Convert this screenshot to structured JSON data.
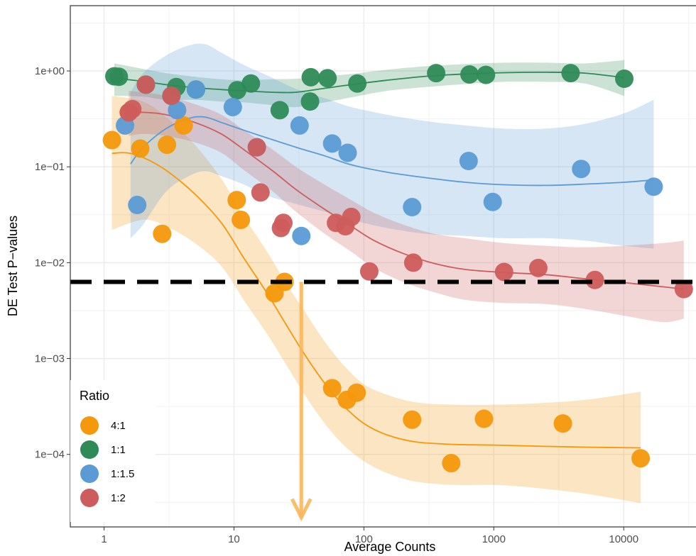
{
  "chart_data": {
    "type": "scatter",
    "xlabel": "Average Counts",
    "ylabel": "DE Test P−values",
    "x_scale": "log",
    "y_scale": "log",
    "xlim": [
      0.55,
      36000
    ],
    "ylim": [
      1.75e-05,
      4.8
    ],
    "x_ticks": [
      {
        "value": 1,
        "label": "1"
      },
      {
        "value": 10,
        "label": "10"
      },
      {
        "value": 100,
        "label": "100"
      },
      {
        "value": 1000,
        "label": "1000"
      },
      {
        "value": 10000,
        "label": "10000"
      }
    ],
    "y_ticks": [
      {
        "value": 1,
        "label": "1e+00"
      },
      {
        "value": 0.1,
        "label": "1e−01"
      },
      {
        "value": 0.01,
        "label": "1e−02"
      },
      {
        "value": 0.001,
        "label": "1e−03"
      },
      {
        "value": 0.0001,
        "label": "1e−04"
      }
    ],
    "grid": true,
    "threshold_line": {
      "y": 0.0063,
      "style": "dashed",
      "color": "#000000"
    },
    "annotation_arrow": {
      "x": 33,
      "from_y": 0.0063,
      "to_y": 2.2e-05,
      "color": "#F9B65A"
    },
    "legend": {
      "title": "Ratio",
      "position": "bottom-left"
    },
    "series": [
      {
        "name": "4:1",
        "color": "#F5980B",
        "points": [
          [
            1.15,
            0.19
          ],
          [
            1.55,
            0.37
          ],
          [
            1.9,
            0.155
          ],
          [
            2.8,
            0.02
          ],
          [
            3.05,
            0.17
          ],
          [
            4.1,
            0.27
          ],
          [
            10.5,
            0.045
          ],
          [
            11.3,
            0.028
          ],
          [
            20.5,
            0.0048
          ],
          [
            24.5,
            0.0063
          ],
          [
            57,
            0.00049
          ],
          [
            74,
            0.00037
          ],
          [
            88,
            0.00044
          ],
          [
            235,
            0.00023
          ],
          [
            470,
            8.1e-05
          ],
          [
            840,
            0.000235
          ],
          [
            3400,
            0.00021
          ],
          [
            13500,
            9.1e-05
          ]
        ],
        "trend": [
          [
            1.15,
            0.138
          ],
          [
            1.5,
            0.14
          ],
          [
            2,
            0.125
          ],
          [
            3,
            0.092
          ],
          [
            5,
            0.052
          ],
          [
            8,
            0.026
          ],
          [
            12,
            0.011
          ],
          [
            18,
            0.0048
          ],
          [
            25,
            0.0023
          ],
          [
            35,
            0.0011
          ],
          [
            50,
            0.00055
          ],
          [
            70,
            0.00032
          ],
          [
            100,
            0.00021
          ],
          [
            150,
            0.00016
          ],
          [
            250,
            0.000135
          ],
          [
            500,
            0.000127
          ],
          [
            1000,
            0.000125
          ],
          [
            2000,
            0.000122
          ],
          [
            5000,
            0.000119
          ],
          [
            13500,
            0.000117
          ]
        ],
        "band": [
          [
            1.15,
            0.55,
            0.022
          ],
          [
            2,
            0.48,
            0.028
          ],
          [
            3,
            0.33,
            0.024
          ],
          [
            5,
            0.17,
            0.016
          ],
          [
            8,
            0.075,
            0.0092
          ],
          [
            12,
            0.03,
            0.004
          ],
          [
            18,
            0.013,
            0.0018
          ],
          [
            25,
            0.0062,
            0.00088
          ],
          [
            35,
            0.0031,
            0.00042
          ],
          [
            50,
            0.0015,
            0.00021
          ],
          [
            70,
            0.00085,
            0.000125
          ],
          [
            100,
            0.00054,
            8.5e-05
          ],
          [
            150,
            0.00042,
            6.4e-05
          ],
          [
            250,
            0.00035,
            5.2e-05
          ],
          [
            500,
            0.00033,
            4.8e-05
          ],
          [
            1000,
            0.00033,
            4.8e-05
          ],
          [
            2000,
            0.00034,
            4.5e-05
          ],
          [
            5000,
            0.00037,
            3.9e-05
          ],
          [
            13500,
            0.00045,
            3.1e-05
          ]
        ]
      },
      {
        "name": "1:1",
        "color": "#2E8B57",
        "points": [
          [
            1.2,
            0.88
          ],
          [
            1.3,
            0.87
          ],
          [
            2.1,
            0.72
          ],
          [
            3.3,
            0.55
          ],
          [
            3.6,
            0.68
          ],
          [
            5.1,
            0.64
          ],
          [
            10.6,
            0.63
          ],
          [
            13.5,
            0.74
          ],
          [
            22.5,
            0.39
          ],
          [
            38.5,
            0.48
          ],
          [
            39,
            0.86
          ],
          [
            52.5,
            0.84
          ],
          [
            89,
            0.74
          ],
          [
            360,
            0.95
          ],
          [
            650,
            0.92
          ],
          [
            870,
            0.91
          ],
          [
            3900,
            0.95
          ],
          [
            10100,
            0.83
          ]
        ],
        "trend": [
          [
            1.2,
            0.84
          ],
          [
            2,
            0.78
          ],
          [
            3,
            0.72
          ],
          [
            5,
            0.67
          ],
          [
            8,
            0.64
          ],
          [
            12,
            0.62
          ],
          [
            20,
            0.6
          ],
          [
            30,
            0.6
          ],
          [
            50,
            0.66
          ],
          [
            80,
            0.72
          ],
          [
            150,
            0.8
          ],
          [
            300,
            0.88
          ],
          [
            600,
            0.93
          ],
          [
            1200,
            0.96
          ],
          [
            2500,
            0.97
          ],
          [
            5000,
            0.95
          ],
          [
            10100,
            0.85
          ]
        ],
        "band": [
          [
            1.2,
            1.2,
            0.55
          ],
          [
            2,
            1.05,
            0.54
          ],
          [
            3,
            0.95,
            0.5
          ],
          [
            5,
            0.87,
            0.5
          ],
          [
            8,
            0.82,
            0.48
          ],
          [
            12,
            0.8,
            0.47
          ],
          [
            20,
            0.82,
            0.44
          ],
          [
            30,
            0.83,
            0.42
          ],
          [
            50,
            0.88,
            0.47
          ],
          [
            80,
            0.93,
            0.53
          ],
          [
            150,
            1.03,
            0.62
          ],
          [
            300,
            1.12,
            0.68
          ],
          [
            600,
            1.18,
            0.73
          ],
          [
            1200,
            1.22,
            0.77
          ],
          [
            2500,
            1.22,
            0.77
          ],
          [
            5000,
            1.2,
            0.74
          ],
          [
            10100,
            1.3,
            0.55
          ]
        ]
      },
      {
        "name": "1:1.5",
        "color": "#5B9BD5",
        "points": [
          [
            1.45,
            0.27
          ],
          [
            1.8,
            0.04
          ],
          [
            3.65,
            0.39
          ],
          [
            5.1,
            0.64
          ],
          [
            9.8,
            0.42
          ],
          [
            15,
            0.16
          ],
          [
            32,
            0.27
          ],
          [
            33,
            0.019
          ],
          [
            57,
            0.175
          ],
          [
            75,
            0.14
          ],
          [
            235,
            0.038
          ],
          [
            640,
            0.115
          ],
          [
            980,
            0.043
          ],
          [
            4700,
            0.095
          ],
          [
            17000,
            0.062
          ]
        ],
        "trend": [
          [
            1.6,
            0.107
          ],
          [
            2,
            0.16
          ],
          [
            3,
            0.25
          ],
          [
            4.5,
            0.32
          ],
          [
            6,
            0.33
          ],
          [
            8,
            0.29
          ],
          [
            12,
            0.24
          ],
          [
            18,
            0.2
          ],
          [
            30,
            0.16
          ],
          [
            50,
            0.13
          ],
          [
            80,
            0.105
          ],
          [
            150,
            0.088
          ],
          [
            300,
            0.077
          ],
          [
            600,
            0.069
          ],
          [
            1200,
            0.065
          ],
          [
            2500,
            0.064
          ],
          [
            5000,
            0.066
          ],
          [
            10000,
            0.069
          ],
          [
            17000,
            0.073
          ]
        ],
        "band": [
          [
            1.6,
            0.6,
            0.018
          ],
          [
            2,
            0.95,
            0.025
          ],
          [
            3,
            1.45,
            0.055
          ],
          [
            4.5,
            1.85,
            0.08
          ],
          [
            6,
            1.9,
            0.09
          ],
          [
            8,
            1.55,
            0.08
          ],
          [
            12,
            1.15,
            0.065
          ],
          [
            18,
            0.9,
            0.05
          ],
          [
            30,
            0.65,
            0.041
          ],
          [
            50,
            0.52,
            0.034
          ],
          [
            80,
            0.42,
            0.028
          ],
          [
            150,
            0.35,
            0.023
          ],
          [
            300,
            0.3,
            0.02
          ],
          [
            600,
            0.27,
            0.019
          ],
          [
            1200,
            0.25,
            0.018
          ],
          [
            2500,
            0.25,
            0.018
          ],
          [
            5000,
            0.28,
            0.017
          ],
          [
            10000,
            0.36,
            0.015
          ],
          [
            17000,
            0.5,
            0.014
          ]
        ]
      },
      {
        "name": "1:2",
        "color": "#CD5C5C",
        "points": [
          [
            1.55,
            0.37
          ],
          [
            1.65,
            0.4
          ],
          [
            2.1,
            0.72
          ],
          [
            3.3,
            0.55
          ],
          [
            15,
            0.16
          ],
          [
            16,
            0.054
          ],
          [
            23,
            0.023
          ],
          [
            24,
            0.026
          ],
          [
            61,
            0.026
          ],
          [
            72,
            0.024
          ],
          [
            80,
            0.03
          ],
          [
            110,
            0.0081
          ],
          [
            240,
            0.01
          ],
          [
            1200,
            0.008
          ],
          [
            2200,
            0.0088
          ],
          [
            6000,
            0.0066
          ],
          [
            29000,
            0.0053
          ]
        ],
        "trend": [
          [
            1.55,
            0.36
          ],
          [
            2,
            0.37
          ],
          [
            3,
            0.35
          ],
          [
            5,
            0.29
          ],
          [
            8,
            0.22
          ],
          [
            12,
            0.15
          ],
          [
            20,
            0.09
          ],
          [
            30,
            0.058
          ],
          [
            50,
            0.036
          ],
          [
            80,
            0.024
          ],
          [
            120,
            0.017
          ],
          [
            200,
            0.0125
          ],
          [
            350,
            0.0098
          ],
          [
            600,
            0.0085
          ],
          [
            1200,
            0.0079
          ],
          [
            2500,
            0.0075
          ],
          [
            5000,
            0.0068
          ],
          [
            10000,
            0.0062
          ],
          [
            20000,
            0.0056
          ],
          [
            29000,
            0.0053
          ]
        ],
        "band": [
          [
            1.55,
            0.62,
            0.21
          ],
          [
            2,
            0.6,
            0.22
          ],
          [
            3,
            0.55,
            0.21
          ],
          [
            5,
            0.45,
            0.18
          ],
          [
            8,
            0.35,
            0.14
          ],
          [
            12,
            0.24,
            0.092
          ],
          [
            20,
            0.15,
            0.055
          ],
          [
            30,
            0.1,
            0.034
          ],
          [
            50,
            0.065,
            0.02
          ],
          [
            80,
            0.045,
            0.013
          ],
          [
            120,
            0.033,
            0.0088
          ],
          [
            200,
            0.025,
            0.0063
          ],
          [
            350,
            0.02,
            0.0049
          ],
          [
            600,
            0.018,
            0.0041
          ],
          [
            1200,
            0.016,
            0.0038
          ],
          [
            2500,
            0.015,
            0.0037
          ],
          [
            5000,
            0.0145,
            0.0033
          ],
          [
            10000,
            0.015,
            0.0028
          ],
          [
            20000,
            0.016,
            0.0024
          ],
          [
            29000,
            0.017,
            0.0026
          ]
        ]
      }
    ]
  }
}
